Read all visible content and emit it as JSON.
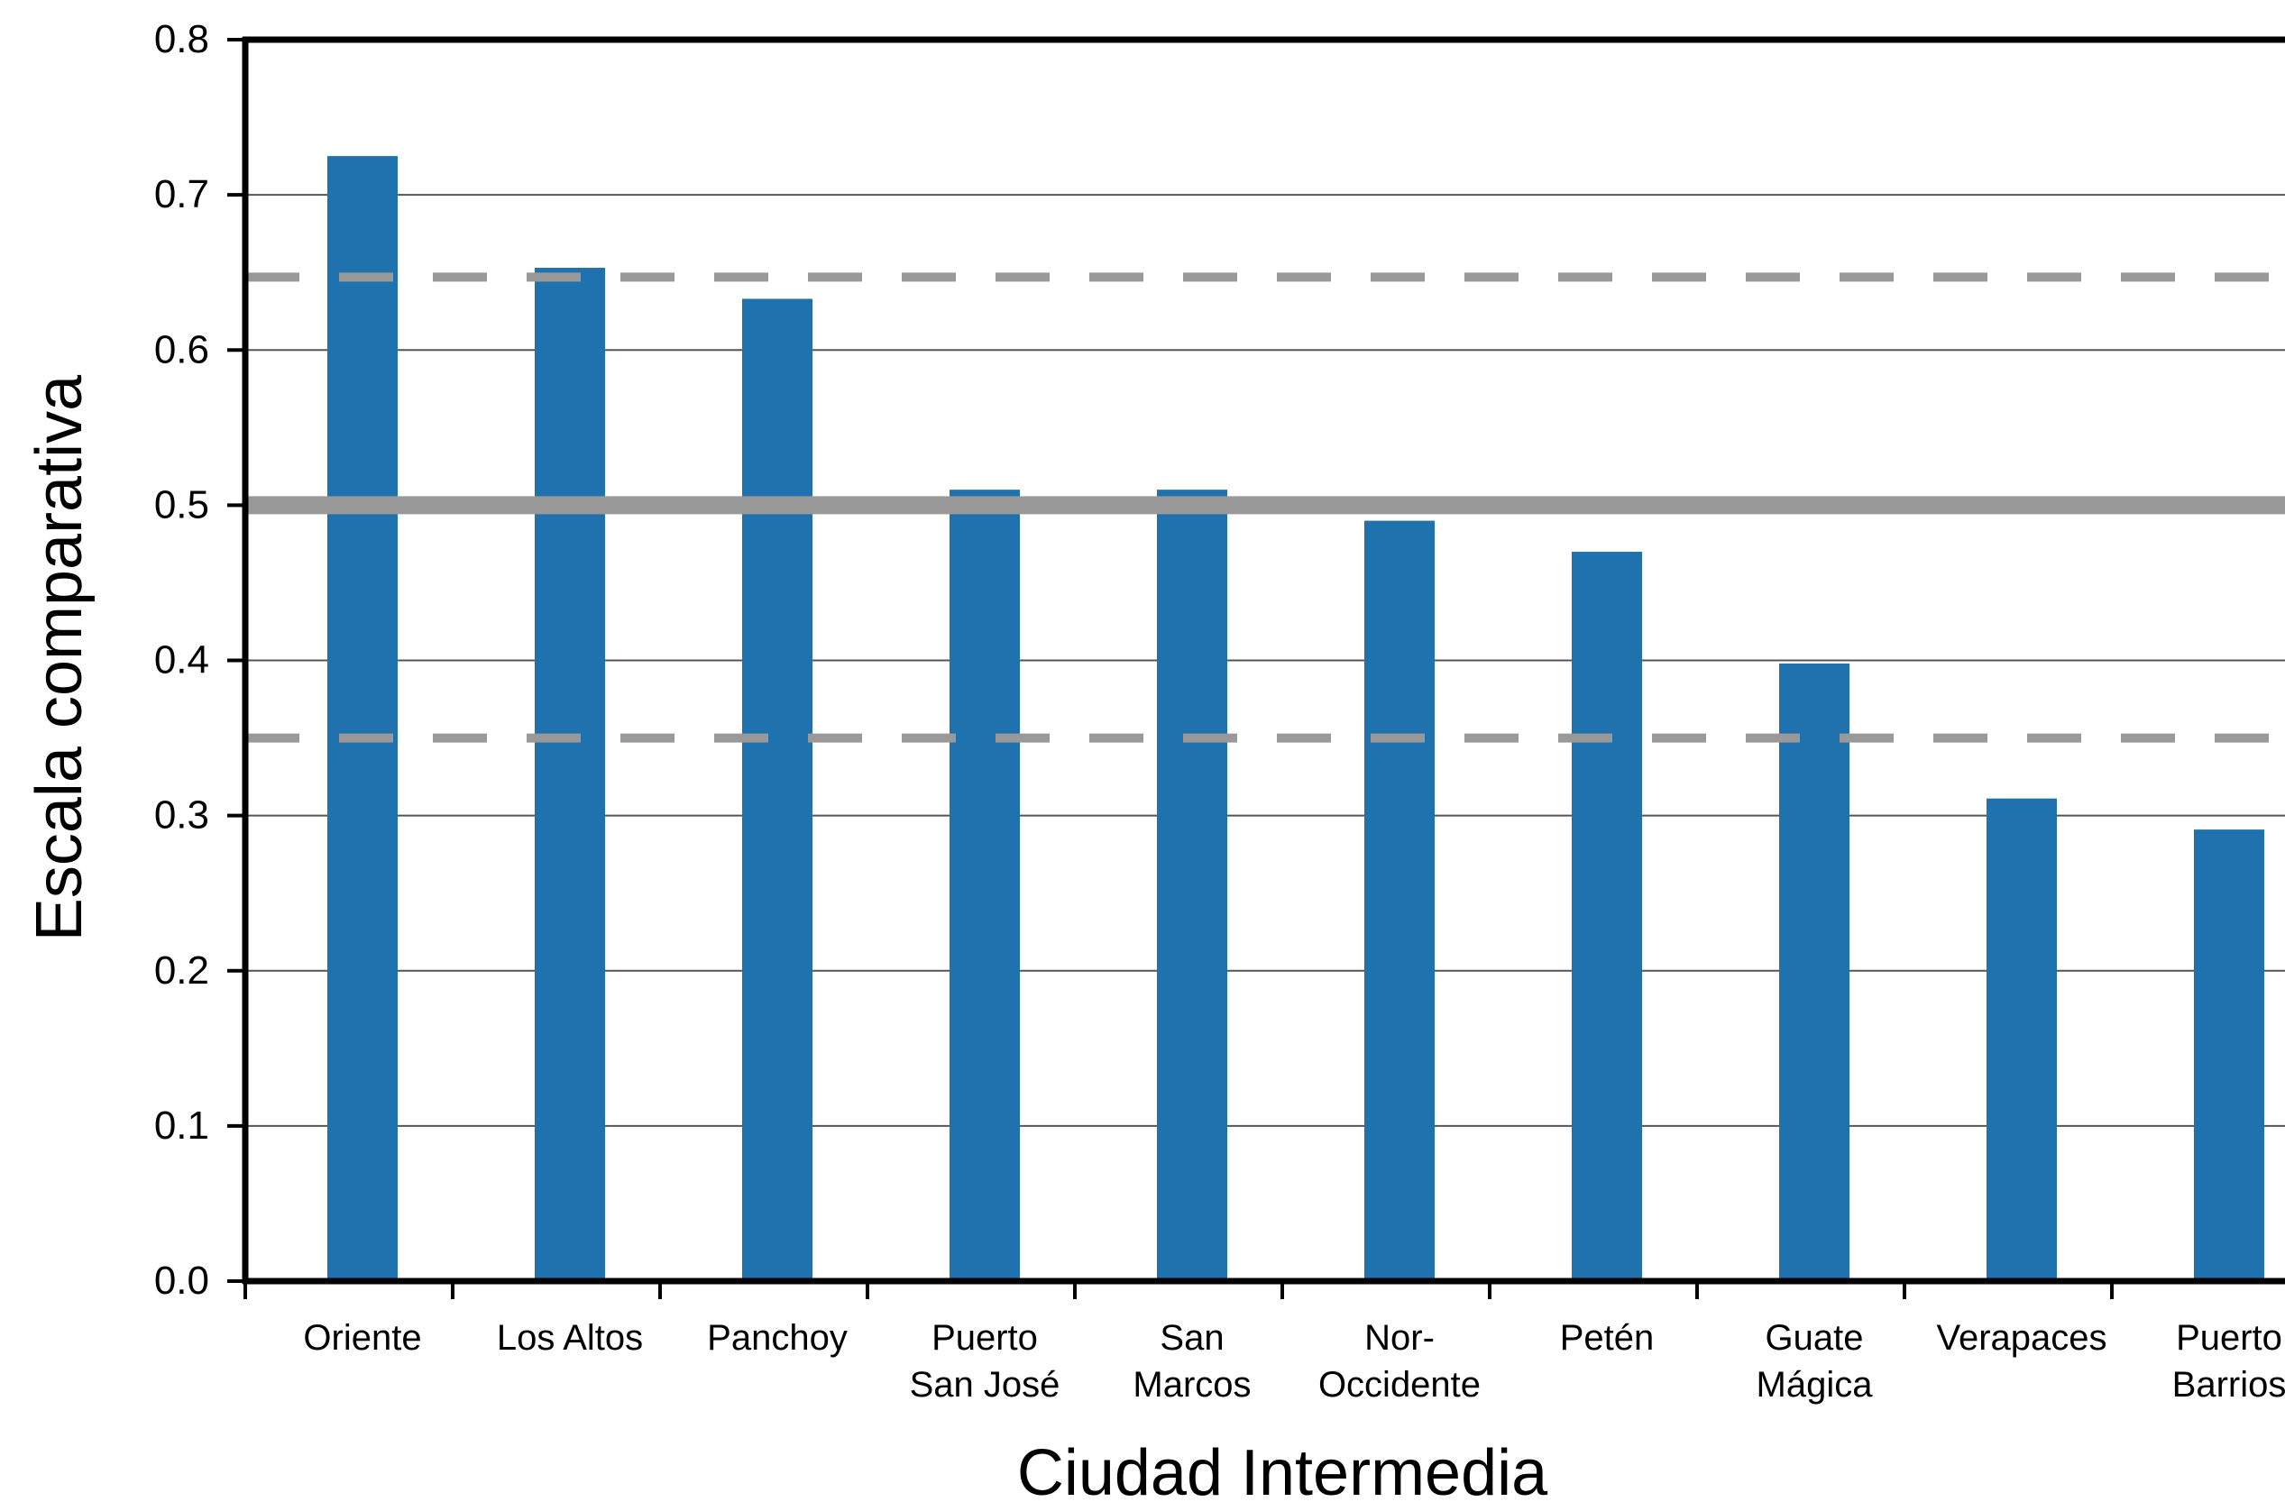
{
  "chart_data": {
    "type": "bar",
    "xlabel": "Ciudad Intermedia",
    "ylabel": "Escala comparativa",
    "ylim": [
      0,
      0.8
    ],
    "yticks": [
      "0.0",
      "0.1",
      "0.2",
      "0.3",
      "0.4",
      "0.5",
      "0.6",
      "0.7",
      "0.8"
    ],
    "categories": [
      [
        "Oriente"
      ],
      [
        "Los Altos"
      ],
      [
        "Panchoy"
      ],
      [
        "Puerto",
        "San José"
      ],
      [
        "San",
        "Marcos"
      ],
      [
        "Nor-",
        "Occidente"
      ],
      [
        "Petén"
      ],
      [
        "Guate",
        "Mágica"
      ],
      [
        "Verapaces"
      ],
      [
        "Puerto",
        "Barrios"
      ]
    ],
    "values": [
      0.725,
      0.653,
      0.633,
      0.51,
      0.51,
      0.49,
      0.47,
      0.398,
      0.311,
      0.291
    ],
    "reference_lines": [
      {
        "value": 0.5,
        "style": "solid"
      },
      {
        "value": 0.647,
        "style": "dashed"
      },
      {
        "value": 0.35,
        "style": "dashed"
      }
    ],
    "grid": true,
    "colors": {
      "bar": "#1f72ad",
      "reference": "#999999",
      "grid": "#555555",
      "axis": "#000000"
    }
  }
}
